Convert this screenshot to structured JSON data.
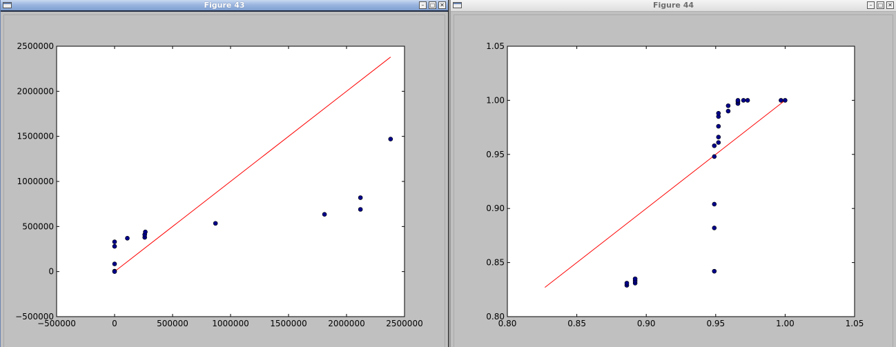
{
  "windows": [
    {
      "title": "Figure 43",
      "buttons": [
        "minimize",
        "maximize",
        "close"
      ]
    },
    {
      "title": "Figure 44",
      "buttons": [
        "minimize",
        "maximize",
        "close"
      ]
    }
  ],
  "colors": {
    "points": "#00008b",
    "line": "#ff0000",
    "background": "#c0c0c0"
  },
  "chart_data": [
    {
      "type": "scatter",
      "title": "",
      "xlabel": "",
      "ylabel": "",
      "xlim": [
        -500000,
        2500000
      ],
      "ylim": [
        -500000,
        2500000
      ],
      "xticks": [
        -500000,
        0,
        500000,
        1000000,
        1500000,
        2000000,
        2500000
      ],
      "yticks": [
        -500000,
        0,
        500000,
        1000000,
        1500000,
        2000000,
        2500000
      ],
      "xtick_labels": [
        "−500000",
        "0",
        "500000",
        "1000000",
        "1500000",
        "2000000",
        "2500000"
      ],
      "ytick_labels": [
        "−500000",
        "0",
        "500000",
        "1000000",
        "1500000",
        "2000000",
        "2500000"
      ],
      "grid": false,
      "points": [
        [
          0,
          330000
        ],
        [
          0,
          280000
        ],
        [
          0,
          85000
        ],
        [
          0,
          5000
        ],
        [
          0,
          0
        ],
        [
          110000,
          370000
        ],
        [
          260000,
          380000
        ],
        [
          260000,
          410000
        ],
        [
          265000,
          440000
        ],
        [
          870000,
          535000
        ],
        [
          1810000,
          635000
        ],
        [
          2120000,
          820000
        ],
        [
          2120000,
          690000
        ],
        [
          2380000,
          1470000
        ]
      ],
      "line": {
        "x": [
          0,
          2380000
        ],
        "y": [
          0,
          2380000
        ]
      }
    },
    {
      "type": "scatter",
      "title": "",
      "xlabel": "",
      "ylabel": "",
      "xlim": [
        0.8,
        1.05
      ],
      "ylim": [
        0.8,
        1.05
      ],
      "xticks": [
        0.8,
        0.85,
        0.9,
        0.95,
        1.0,
        1.05
      ],
      "yticks": [
        0.8,
        0.85,
        0.9,
        0.95,
        1.0,
        1.05
      ],
      "xtick_labels": [
        "0.80",
        "0.85",
        "0.90",
        "0.95",
        "1.00",
        "1.05"
      ],
      "ytick_labels": [
        "0.80",
        "0.85",
        "0.90",
        "0.95",
        "1.00",
        "1.05"
      ],
      "grid": false,
      "points": [
        [
          0.886,
          0.829
        ],
        [
          0.886,
          0.831
        ],
        [
          0.892,
          0.831
        ],
        [
          0.892,
          0.833
        ],
        [
          0.892,
          0.835
        ],
        [
          0.949,
          0.842
        ],
        [
          0.949,
          0.882
        ],
        [
          0.949,
          0.904
        ],
        [
          0.949,
          0.948
        ],
        [
          0.949,
          0.958
        ],
        [
          0.952,
          0.961
        ],
        [
          0.952,
          0.966
        ],
        [
          0.952,
          0.976
        ],
        [
          0.952,
          0.985
        ],
        [
          0.952,
          0.988
        ],
        [
          0.959,
          0.99
        ],
        [
          0.959,
          0.995
        ],
        [
          0.966,
          0.997
        ],
        [
          0.966,
          0.999
        ],
        [
          0.966,
          1.0
        ],
        [
          0.97,
          1.0
        ],
        [
          0.973,
          1.0
        ],
        [
          0.997,
          1.0
        ],
        [
          1.0,
          1.0
        ]
      ],
      "line": {
        "x": [
          0.827,
          1.0
        ],
        "y": [
          0.827,
          1.0
        ]
      }
    }
  ]
}
